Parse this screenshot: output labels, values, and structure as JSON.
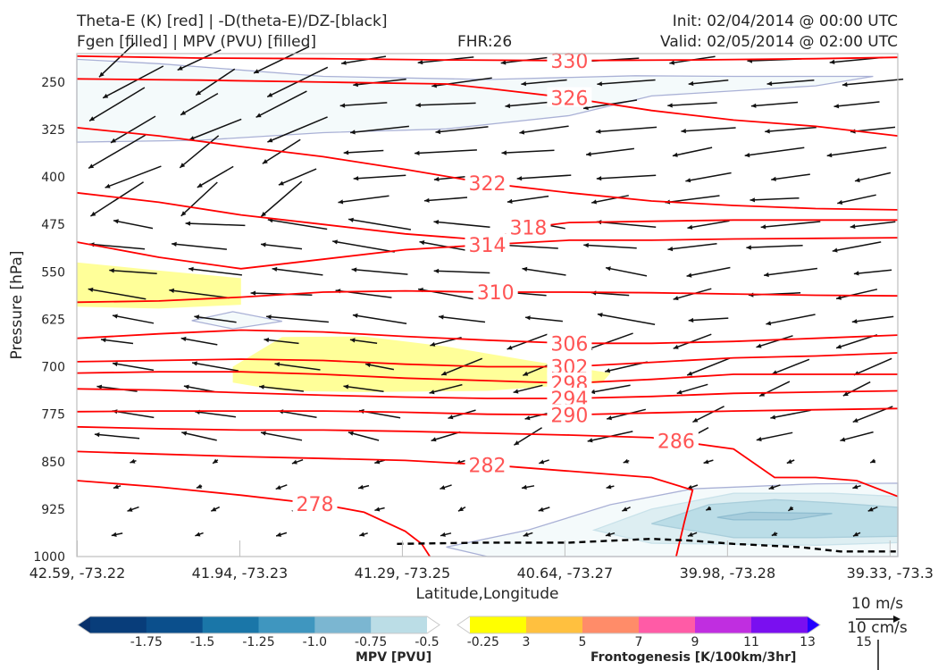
{
  "header": {
    "title_line1": "Theta-E (K) [red] | -D(theta-E)/DZ-[black]",
    "title_line2": "Fgen [filled] | MPV (PVU) [filled]",
    "fhr": "FHR:26",
    "init": "Init: 02/04/2014 @ 00:00 UTC",
    "valid": "Valid: 02/05/2014 @ 02:00 UTC"
  },
  "chart_data": {
    "type": "cross-section",
    "xlabel": "Latitude,Longitude",
    "ylabel": "Pressure [hPa]",
    "x_ticks": [
      "42.59, -73.22",
      "41.94, -73.23",
      "41.29, -73.25",
      "40.64, -73.27",
      "39.98, -73.28",
      "39.33, -73.3"
    ],
    "y_ticks": [
      250,
      325,
      400,
      475,
      550,
      625,
      700,
      775,
      850,
      925,
      1000
    ],
    "ylim": [
      1000,
      205
    ],
    "grid": false,
    "theta_e_contours": [
      {
        "level": 330,
        "label": "330",
        "points": [
          [
            0,
            209
          ],
          [
            0.15,
            212
          ],
          [
            0.3,
            213
          ],
          [
            0.45,
            215
          ],
          [
            0.6,
            216
          ],
          [
            0.75,
            215
          ],
          [
            0.9,
            213
          ],
          [
            1.0,
            211
          ]
        ]
      },
      {
        "level": 326,
        "label": "326",
        "points": [
          [
            0,
            245
          ],
          [
            0.15,
            247
          ],
          [
            0.3,
            250
          ],
          [
            0.45,
            253
          ],
          [
            0.5,
            260
          ],
          [
            0.6,
            275
          ],
          [
            0.7,
            295
          ],
          [
            0.8,
            310
          ],
          [
            0.9,
            320
          ],
          [
            1.0,
            335
          ]
        ]
      },
      {
        "level": 322,
        "label": "322",
        "points": [
          [
            0,
            322
          ],
          [
            0.1,
            335
          ],
          [
            0.2,
            352
          ],
          [
            0.3,
            368
          ],
          [
            0.4,
            388
          ],
          [
            0.5,
            410
          ],
          [
            0.6,
            425
          ],
          [
            0.7,
            438
          ],
          [
            0.8,
            445
          ],
          [
            0.9,
            450
          ],
          [
            1.0,
            452
          ]
        ]
      },
      {
        "level": 318,
        "label": "318",
        "points": [
          [
            0,
            425
          ],
          [
            0.1,
            440
          ],
          [
            0.2,
            460
          ],
          [
            0.3,
            475
          ],
          [
            0.4,
            490
          ],
          [
            0.5,
            500
          ],
          [
            0.55,
            480
          ],
          [
            0.6,
            472
          ],
          [
            0.7,
            470
          ],
          [
            0.8,
            468
          ],
          [
            0.9,
            468
          ],
          [
            1.0,
            468
          ]
        ]
      },
      {
        "level": 314,
        "label": "314",
        "points": [
          [
            0,
            503
          ],
          [
            0.1,
            527
          ],
          [
            0.2,
            545
          ],
          [
            0.3,
            530
          ],
          [
            0.4,
            515
          ],
          [
            0.5,
            507
          ],
          [
            0.6,
            500
          ],
          [
            0.7,
            500
          ],
          [
            0.8,
            498
          ],
          [
            0.9,
            497
          ],
          [
            1.0,
            496
          ]
        ]
      },
      {
        "level": 310,
        "label": "310",
        "points": [
          [
            0,
            598
          ],
          [
            0.1,
            596
          ],
          [
            0.2,
            590
          ],
          [
            0.3,
            582
          ],
          [
            0.4,
            580
          ],
          [
            0.5,
            582
          ],
          [
            0.6,
            582
          ],
          [
            0.7,
            583
          ],
          [
            0.8,
            585
          ],
          [
            0.9,
            587
          ],
          [
            1.0,
            588
          ]
        ]
      },
      {
        "level": 306,
        "label": "306",
        "points": [
          [
            0,
            655
          ],
          [
            0.1,
            648
          ],
          [
            0.2,
            642
          ],
          [
            0.3,
            645
          ],
          [
            0.4,
            652
          ],
          [
            0.5,
            658
          ],
          [
            0.6,
            663
          ],
          [
            0.7,
            663
          ],
          [
            0.8,
            660
          ],
          [
            0.9,
            655
          ],
          [
            1.0,
            650
          ]
        ]
      },
      {
        "level": 302,
        "label": "302",
        "points": [
          [
            0,
            692
          ],
          [
            0.1,
            690
          ],
          [
            0.2,
            688
          ],
          [
            0.3,
            690
          ],
          [
            0.4,
            696
          ],
          [
            0.5,
            700
          ],
          [
            0.6,
            700
          ],
          [
            0.7,
            693
          ],
          [
            0.8,
            686
          ],
          [
            0.9,
            683
          ],
          [
            1.0,
            678
          ]
        ]
      },
      {
        "level": 298,
        "label": "298",
        "points": [
          [
            0,
            710
          ],
          [
            0.1,
            708
          ],
          [
            0.2,
            708
          ],
          [
            0.3,
            712
          ],
          [
            0.4,
            718
          ],
          [
            0.5,
            722
          ],
          [
            0.6,
            726
          ],
          [
            0.7,
            720
          ],
          [
            0.8,
            712
          ],
          [
            0.9,
            712
          ],
          [
            1.0,
            712
          ]
        ]
      },
      {
        "level": 294,
        "label": "294",
        "points": [
          [
            0,
            735
          ],
          [
            0.1,
            737
          ],
          [
            0.2,
            741
          ],
          [
            0.3,
            745
          ],
          [
            0.4,
            748
          ],
          [
            0.5,
            750
          ],
          [
            0.6,
            750
          ],
          [
            0.7,
            747
          ],
          [
            0.8,
            742
          ],
          [
            0.9,
            740
          ],
          [
            1.0,
            738
          ]
        ]
      },
      {
        "level": 290,
        "label": "290",
        "points": [
          [
            0,
            771
          ],
          [
            0.1,
            770
          ],
          [
            0.2,
            770
          ],
          [
            0.3,
            770
          ],
          [
            0.4,
            772
          ],
          [
            0.5,
            775
          ],
          [
            0.6,
            776
          ],
          [
            0.7,
            773
          ],
          [
            0.8,
            770
          ],
          [
            0.9,
            768
          ],
          [
            1.0,
            766
          ]
        ]
      },
      {
        "level": 286,
        "label": "286",
        "points": [
          [
            0,
            795
          ],
          [
            0.1,
            798
          ],
          [
            0.2,
            800
          ],
          [
            0.3,
            800
          ],
          [
            0.4,
            802
          ],
          [
            0.5,
            805
          ],
          [
            0.6,
            808
          ],
          [
            0.7,
            812
          ],
          [
            0.8,
            830
          ],
          [
            0.85,
            875
          ],
          [
            0.9,
            875
          ],
          [
            0.95,
            880
          ],
          [
            1.0,
            905
          ]
        ]
      },
      {
        "level": 282,
        "label": "282",
        "points": [
          [
            0,
            834
          ],
          [
            0.1,
            838
          ],
          [
            0.2,
            842
          ],
          [
            0.3,
            845
          ],
          [
            0.4,
            848
          ],
          [
            0.5,
            855
          ],
          [
            0.6,
            865
          ],
          [
            0.7,
            875
          ],
          [
            0.75,
            895
          ],
          [
            0.74,
            945
          ],
          [
            0.73,
            1000
          ]
        ]
      },
      {
        "level": 278,
        "label": "278",
        "points": [
          [
            0,
            880
          ],
          [
            0.1,
            890
          ],
          [
            0.2,
            903
          ],
          [
            0.3,
            918
          ],
          [
            0.35,
            930
          ],
          [
            0.4,
            960
          ],
          [
            0.42,
            980
          ],
          [
            0.43,
            1000
          ]
        ]
      }
    ],
    "dtheta_dz_contour": {
      "color": "#000000",
      "style": "dashed",
      "points": [
        [
          0.39,
          980
        ],
        [
          0.5,
          978
        ],
        [
          0.6,
          978
        ],
        [
          0.7,
          972
        ],
        [
          0.75,
          975
        ],
        [
          0.8,
          980
        ],
        [
          0.88,
          985
        ],
        [
          0.93,
          992
        ],
        [
          1.0,
          992
        ]
      ]
    },
    "fgen_regions": [
      {
        "color": "#ffff99",
        "points": [
          [
            0,
            535
          ],
          [
            0.1,
            548
          ],
          [
            0.2,
            560
          ],
          [
            0.2,
            602
          ],
          [
            0.1,
            608
          ],
          [
            0,
            605
          ]
        ]
      },
      {
        "color": "#ffff99",
        "points": [
          [
            0.19,
            700
          ],
          [
            0.25,
            653
          ],
          [
            0.35,
            652
          ],
          [
            0.45,
            668
          ],
          [
            0.55,
            690
          ],
          [
            0.65,
            710
          ],
          [
            0.64,
            725
          ],
          [
            0.5,
            738
          ],
          [
            0.35,
            740
          ],
          [
            0.25,
            738
          ],
          [
            0.19,
            725
          ]
        ]
      }
    ],
    "mpv_regions": [
      {
        "color": "#f4fafb",
        "edge": "#aab1d6",
        "points": [
          [
            0,
            214
          ],
          [
            0.1,
            221
          ],
          [
            0.3,
            241
          ],
          [
            0.5,
            246
          ],
          [
            0.68,
            240
          ],
          [
            0.8,
            241
          ],
          [
            0.97,
            241
          ],
          [
            0.9,
            256
          ],
          [
            0.7,
            272
          ],
          [
            0.6,
            303
          ],
          [
            0.45,
            324
          ],
          [
            0.3,
            330
          ],
          [
            0.15,
            342
          ],
          [
            0,
            345
          ]
        ]
      },
      {
        "color": "#f4fafb",
        "edge": "#aab1d6",
        "points": [
          [
            0.45,
            985
          ],
          [
            0.55,
            958
          ],
          [
            0.65,
            918
          ],
          [
            0.75,
            893
          ],
          [
            0.9,
            885
          ],
          [
            1.0,
            884
          ],
          [
            1.0,
            1000
          ],
          [
            0.5,
            1000
          ]
        ]
      },
      {
        "color": "#ddeef2",
        "edge": "#c9e2ea",
        "points": [
          [
            0.63,
            958
          ],
          [
            0.7,
            925
          ],
          [
            0.8,
            900
          ],
          [
            0.92,
            900
          ],
          [
            1.0,
            905
          ],
          [
            1.0,
            978
          ],
          [
            0.9,
            982
          ],
          [
            0.7,
            979
          ]
        ]
      },
      {
        "color": "#bbdde7",
        "edge": "#a9cedb",
        "points": [
          [
            0.7,
            948
          ],
          [
            0.77,
            918
          ],
          [
            0.85,
            910
          ],
          [
            0.92,
            915
          ],
          [
            1.0,
            922
          ],
          [
            1.0,
            968
          ],
          [
            0.9,
            970
          ],
          [
            0.8,
            970
          ]
        ]
      },
      {
        "color": "#a7cddc",
        "edge": "#8fbdd0",
        "points": [
          [
            0.78,
            938
          ],
          [
            0.82,
            930
          ],
          [
            0.92,
            932
          ],
          [
            0.87,
            942
          ],
          [
            0.8,
            942
          ]
        ]
      },
      {
        "color": "#f4fafb",
        "edge": "#aab1d6",
        "points": [
          [
            0.14,
            627
          ],
          [
            0.19,
            613
          ],
          [
            0.25,
            628
          ],
          [
            0.19,
            640
          ]
        ]
      }
    ],
    "wind_barb_scale": {
      "label_top": "10 m/s",
      "label_bottom": "10 cm/s"
    },
    "mpv_colorbar": {
      "label": "MPV [PVU]",
      "ticks": [
        "-1.75",
        "-1.5",
        "-1.25",
        "-1.0",
        "-0.75",
        "-0.5",
        "-0.25"
      ],
      "colors": [
        "#08306b",
        "#083d7a",
        "#0b4f8c",
        "#1a76a8",
        "#3f96bf",
        "#7bb6d1",
        "#bbdde6",
        "#ffffff"
      ]
    },
    "fgen_colorbar": {
      "label": "Frontogenesis [K/100km/3hr]",
      "ticks": [
        "3",
        "5",
        "7",
        "9",
        "11",
        "13",
        "15"
      ],
      "colors": [
        "#ffffff",
        "#ffff00",
        "#ffc03f",
        "#ff8c69",
        "#ff5ba6",
        "#c02ee0",
        "#7a0ff0",
        "#2300ff"
      ]
    }
  }
}
